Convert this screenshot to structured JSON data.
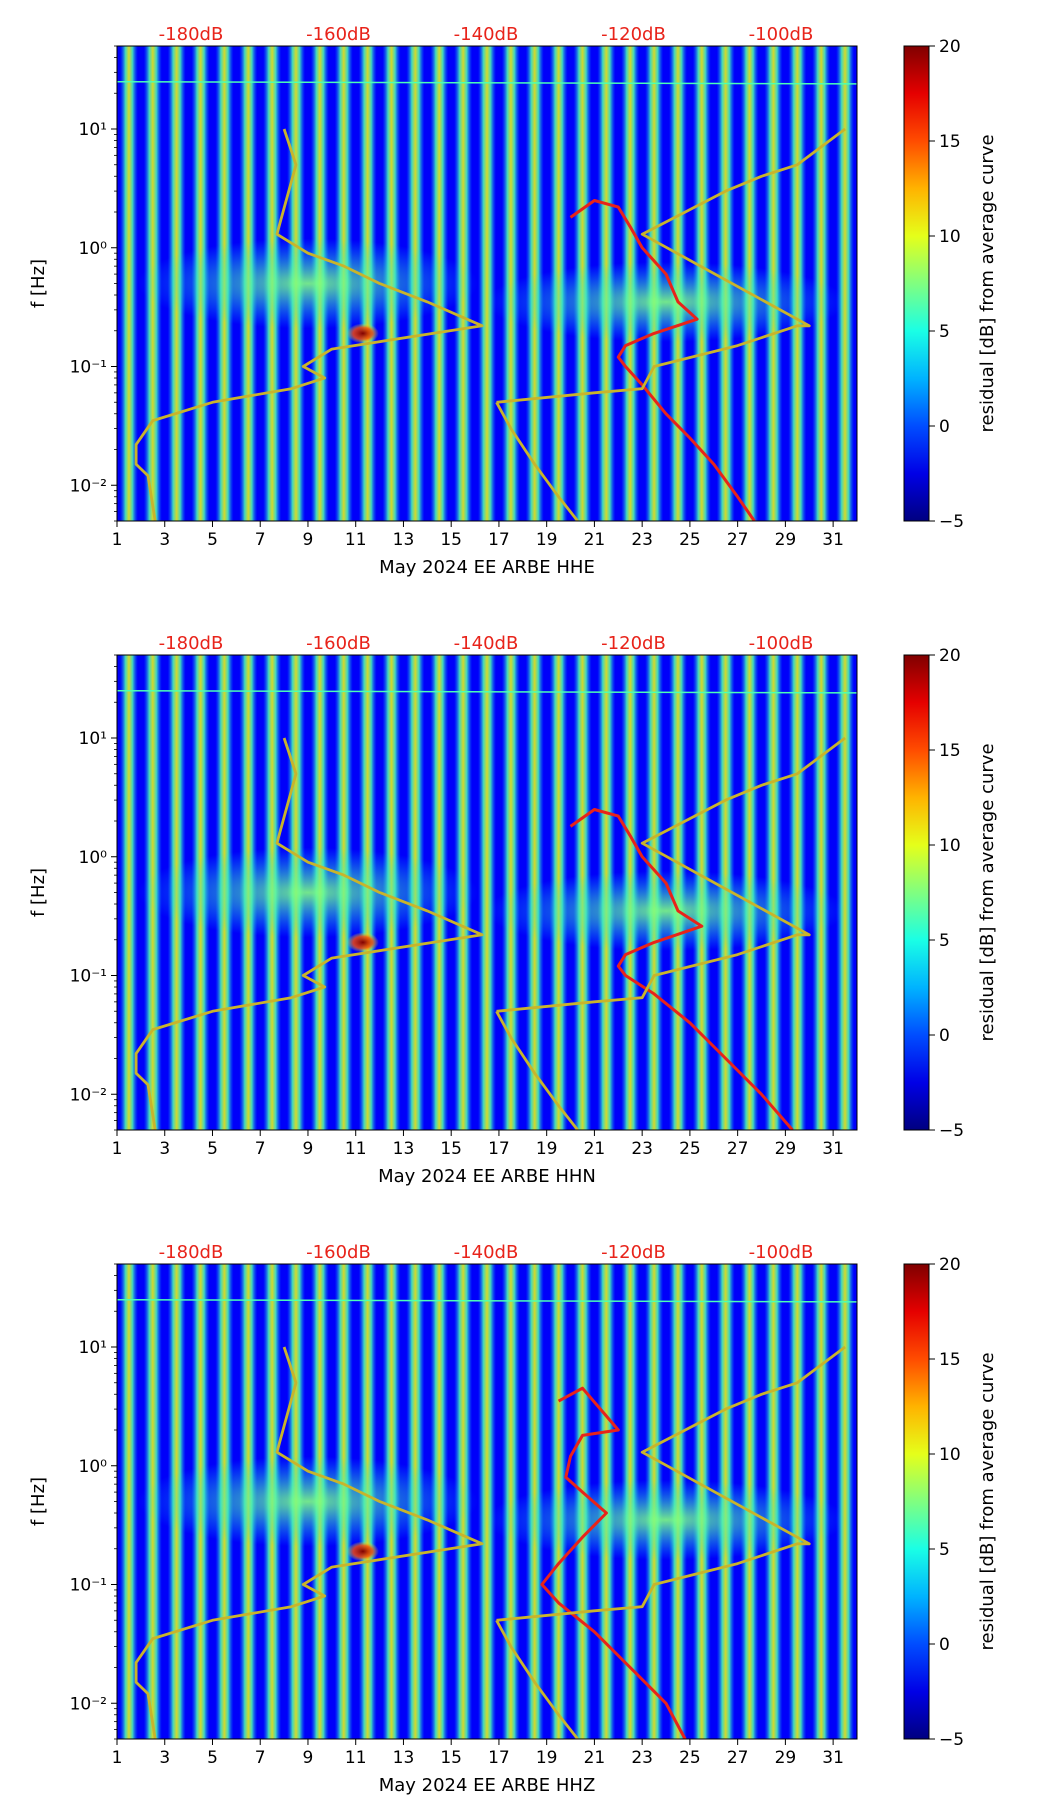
{
  "chart_data": [
    {
      "type": "heatmap",
      "xlabel": "May 2024 EE ARBE  HHE",
      "ylabel": "f [Hz]",
      "xlim": [
        1,
        32
      ],
      "ylim": [
        0.005,
        50
      ],
      "yscale": "log",
      "x_ticks": [
        1,
        3,
        5,
        7,
        9,
        11,
        13,
        15,
        17,
        19,
        21,
        23,
        25,
        27,
        29,
        31
      ],
      "y_ticks": [
        {
          "value": 0.01,
          "label": "10⁻²"
        },
        {
          "value": 0.1,
          "label": "10⁻¹"
        },
        {
          "value": 1,
          "label": "10⁰"
        },
        {
          "value": 10,
          "label": "10¹"
        }
      ],
      "top_scale_labels": [
        "-180dB",
        "-160dB",
        "-140dB",
        "-120dB",
        "-100dB"
      ],
      "colorbar": {
        "label": "residual [dB] from average curve",
        "min": -5,
        "max": 20,
        "ticks": [
          -5,
          0,
          5,
          10,
          15,
          20
        ]
      },
      "colors": {
        "noise_model": "#c8b42c",
        "median_psd": "#e8231a",
        "top_labels": "#e8231a"
      },
      "series": [
        {
          "x": [
            8,
            8.5,
            7.7,
            9,
            10.5,
            12,
            14,
            16.3,
            10,
            8.8,
            9.7,
            8.3,
            5,
            2.5,
            1.8,
            1.8,
            2.3,
            2.6
          ],
          "y": [
            10,
            5,
            1.3,
            0.9,
            0.7,
            0.5,
            0.35,
            0.22,
            0.14,
            0.1,
            0.08,
            0.065,
            0.05,
            0.035,
            0.022,
            0.015,
            0.012,
            0.005
          ]
        },
        {
          "x": [
            20,
            21,
            22,
            22.5,
            23,
            24,
            24.5,
            25.3,
            23.5,
            22.3,
            22,
            22.3,
            23,
            24,
            25,
            26,
            27,
            27.7
          ],
          "y": [
            1.8,
            2.5,
            2.2,
            1.5,
            1.0,
            0.6,
            0.35,
            0.25,
            0.19,
            0.15,
            0.12,
            0.1,
            0.07,
            0.04,
            0.025,
            0.015,
            0.008,
            0.005
          ]
        },
        {
          "x": [
            16.9,
            21,
            23,
            23.5,
            27,
            29.5,
            30,
            23,
            26.5,
            28,
            29.5,
            31.5
          ],
          "y": [
            0.05,
            0.06,
            0.065,
            0.1,
            0.15,
            0.22,
            0.22,
            1.3,
            3.0,
            4.0,
            5.0,
            10
          ]
        },
        {
          "x": [
            16.9,
            17.5,
            18.5,
            19.5,
            20.3
          ],
          "y": [
            0.05,
            0.03,
            0.015,
            0.008,
            0.005
          ]
        }
      ]
    },
    {
      "type": "heatmap",
      "xlabel": "May 2024 EE ARBE  HHN",
      "ylabel": "f [Hz]",
      "xlim": [
        1,
        32
      ],
      "ylim": [
        0.005,
        50
      ],
      "yscale": "log",
      "x_ticks": [
        1,
        3,
        5,
        7,
        9,
        11,
        13,
        15,
        17,
        19,
        21,
        23,
        25,
        27,
        29,
        31
      ],
      "y_ticks": [
        {
          "value": 0.01,
          "label": "10⁻²"
        },
        {
          "value": 0.1,
          "label": "10⁻¹"
        },
        {
          "value": 1,
          "label": "10⁰"
        },
        {
          "value": 10,
          "label": "10¹"
        }
      ],
      "top_scale_labels": [
        "-180dB",
        "-160dB",
        "-140dB",
        "-120dB",
        "-100dB"
      ],
      "colorbar": {
        "label": "residual [dB] from average curve",
        "min": -5,
        "max": 20,
        "ticks": [
          -5,
          0,
          5,
          10,
          15,
          20
        ]
      },
      "colors": {
        "noise_model": "#c8b42c",
        "median_psd": "#e8231a",
        "top_labels": "#e8231a"
      },
      "series": [
        {
          "x": [
            8,
            8.5,
            7.7,
            9,
            10.5,
            12,
            14,
            16.3,
            10,
            8.8,
            9.7,
            8.3,
            5,
            2.5,
            1.8,
            1.8,
            2.3,
            2.6
          ],
          "y": [
            10,
            5,
            1.3,
            0.9,
            0.7,
            0.5,
            0.35,
            0.22,
            0.14,
            0.1,
            0.08,
            0.065,
            0.05,
            0.035,
            0.022,
            0.015,
            0.012,
            0.005
          ]
        },
        {
          "x": [
            20,
            21,
            22,
            22.5,
            23,
            24,
            24.5,
            25.5,
            23.5,
            22.3,
            22,
            22.3,
            23.5,
            25,
            26.5,
            28,
            29.3
          ],
          "y": [
            1.8,
            2.5,
            2.2,
            1.5,
            1.0,
            0.6,
            0.35,
            0.26,
            0.19,
            0.15,
            0.12,
            0.1,
            0.07,
            0.04,
            0.02,
            0.01,
            0.005
          ]
        },
        {
          "x": [
            16.9,
            21,
            23,
            23.5,
            27,
            29.5,
            30,
            23,
            26.5,
            28,
            29.5,
            31.5
          ],
          "y": [
            0.05,
            0.06,
            0.065,
            0.1,
            0.15,
            0.22,
            0.22,
            1.3,
            3.0,
            4.0,
            5.0,
            10
          ]
        },
        {
          "x": [
            16.9,
            17.5,
            18.5,
            19.5,
            20.3
          ],
          "y": [
            0.05,
            0.03,
            0.015,
            0.008,
            0.005
          ]
        }
      ]
    },
    {
      "type": "heatmap",
      "xlabel": "May 2024 EE ARBE  HHZ",
      "ylabel": "f [Hz]",
      "xlim": [
        1,
        32
      ],
      "ylim": [
        0.005,
        50
      ],
      "yscale": "log",
      "x_ticks": [
        1,
        3,
        5,
        7,
        9,
        11,
        13,
        15,
        17,
        19,
        21,
        23,
        25,
        27,
        29,
        31
      ],
      "y_ticks": [
        {
          "value": 0.01,
          "label": "10⁻²"
        },
        {
          "value": 0.1,
          "label": "10⁻¹"
        },
        {
          "value": 1,
          "label": "10⁰"
        },
        {
          "value": 10,
          "label": "10¹"
        }
      ],
      "top_scale_labels": [
        "-180dB",
        "-160dB",
        "-140dB",
        "-120dB",
        "-100dB"
      ],
      "colorbar": {
        "label": "residual [dB] from average curve",
        "min": -5,
        "max": 20,
        "ticks": [
          -5,
          0,
          5,
          10,
          15,
          20
        ]
      },
      "colors": {
        "noise_model": "#c8b42c",
        "median_psd": "#e8231a",
        "top_labels": "#e8231a"
      },
      "series": [
        {
          "x": [
            8,
            8.5,
            7.7,
            9,
            10.5,
            12,
            14,
            16.3,
            10,
            8.8,
            9.7,
            8.3,
            5,
            2.5,
            1.8,
            1.8,
            2.3,
            2.6
          ],
          "y": [
            10,
            5,
            1.3,
            0.9,
            0.7,
            0.5,
            0.35,
            0.22,
            0.14,
            0.1,
            0.08,
            0.065,
            0.05,
            0.035,
            0.022,
            0.015,
            0.012,
            0.005
          ]
        },
        {
          "x": [
            19.5,
            20.5,
            22,
            20.5,
            20,
            19.8,
            20.5,
            21.5,
            20.5,
            19.5,
            18.8,
            19.5,
            21,
            22.5,
            24,
            24.8
          ],
          "y": [
            3.5,
            4.5,
            2.0,
            1.8,
            1.2,
            0.8,
            0.6,
            0.4,
            0.25,
            0.15,
            0.1,
            0.07,
            0.04,
            0.02,
            0.01,
            0.005
          ]
        },
        {
          "x": [
            16.9,
            21,
            23,
            23.5,
            27,
            29.5,
            30,
            23,
            26.5,
            28,
            29.5,
            31.5
          ],
          "y": [
            0.05,
            0.06,
            0.065,
            0.1,
            0.15,
            0.22,
            0.22,
            1.3,
            3.0,
            4.0,
            5.0,
            10
          ]
        },
        {
          "x": [
            16.9,
            17.5,
            18.5,
            19.5,
            20.3
          ],
          "y": [
            0.05,
            0.03,
            0.015,
            0.008,
            0.005
          ]
        }
      ]
    }
  ]
}
